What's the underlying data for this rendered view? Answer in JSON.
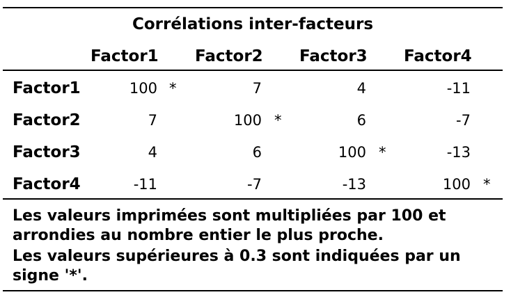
{
  "table": {
    "caption": "Corrélations inter-facteurs",
    "columns": [
      "Factor1",
      "Factor2",
      "Factor3",
      "Factor4"
    ],
    "rows": [
      {
        "label": "Factor1",
        "values": [
          "100",
          "7",
          "4",
          "-11"
        ],
        "marks": [
          "*",
          "",
          "",
          ""
        ]
      },
      {
        "label": "Factor2",
        "values": [
          "7",
          "100",
          "6",
          "-7"
        ],
        "marks": [
          "",
          "*",
          "",
          ""
        ]
      },
      {
        "label": "Factor3",
        "values": [
          "4",
          "6",
          "100",
          "-13"
        ],
        "marks": [
          "",
          "",
          "*",
          ""
        ]
      },
      {
        "label": "Factor4",
        "values": [
          "-11",
          "-7",
          "-13",
          "100"
        ],
        "marks": [
          "",
          "",
          "",
          "*"
        ]
      }
    ]
  },
  "notes": {
    "line1": "Les valeurs imprimées sont multipliées par 100 et",
    "line2": "arrondies au nombre entier le plus proche.",
    "line3": "Les valeurs supérieures à 0.3 sont indiquées par un",
    "line4": "signe '*'."
  }
}
